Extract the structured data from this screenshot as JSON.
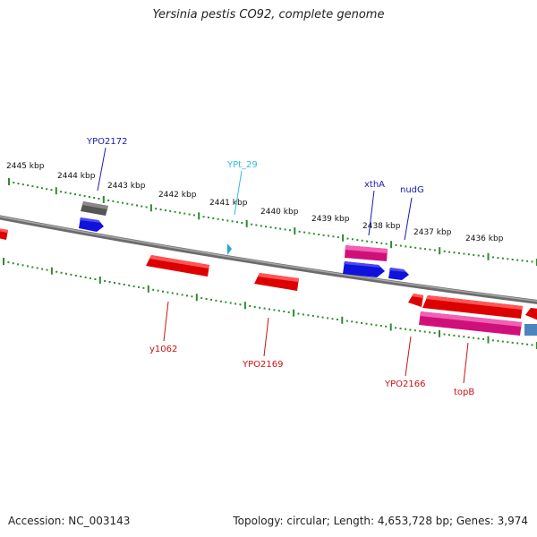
{
  "title": "Yersinia pestis CO92, complete genome",
  "footer": {
    "accession": "Accession: NC_003143",
    "stats": "Topology: circular; Length: 4,653,728 bp; Genes: 3,974"
  },
  "ruler_labels": [
    "2445 kbp",
    "2444 kbp",
    "2443 kbp",
    "2442 kbp",
    "2441 kbp",
    "2440 kbp",
    "2439 kbp",
    "2438 kbp",
    "2437 kbp",
    "2436 kbp"
  ],
  "gene_labels": {
    "YPO2172": "YPO2172",
    "YPt_29": "YPt_29",
    "xthA": "xthA",
    "nudG": "nudG",
    "y1062": "y1062",
    "YPO2169": "YPO2169",
    "YPO2166": "YPO2166",
    "topB": "topB"
  },
  "colors": {
    "backbone": "#8a8a8a",
    "ruler_tick": "#2e8b2e",
    "gene_red": "#ee1111",
    "gene_pink": "#e8228e",
    "gene_blue": "#1111dd",
    "gene_gray": "#666666",
    "gene_steel": "#4a86bd",
    "trna_cyan": "#22aacc",
    "label_blue": "#1a1aa8",
    "label_red": "#cc1111",
    "label_cyan": "#33bbdd"
  }
}
